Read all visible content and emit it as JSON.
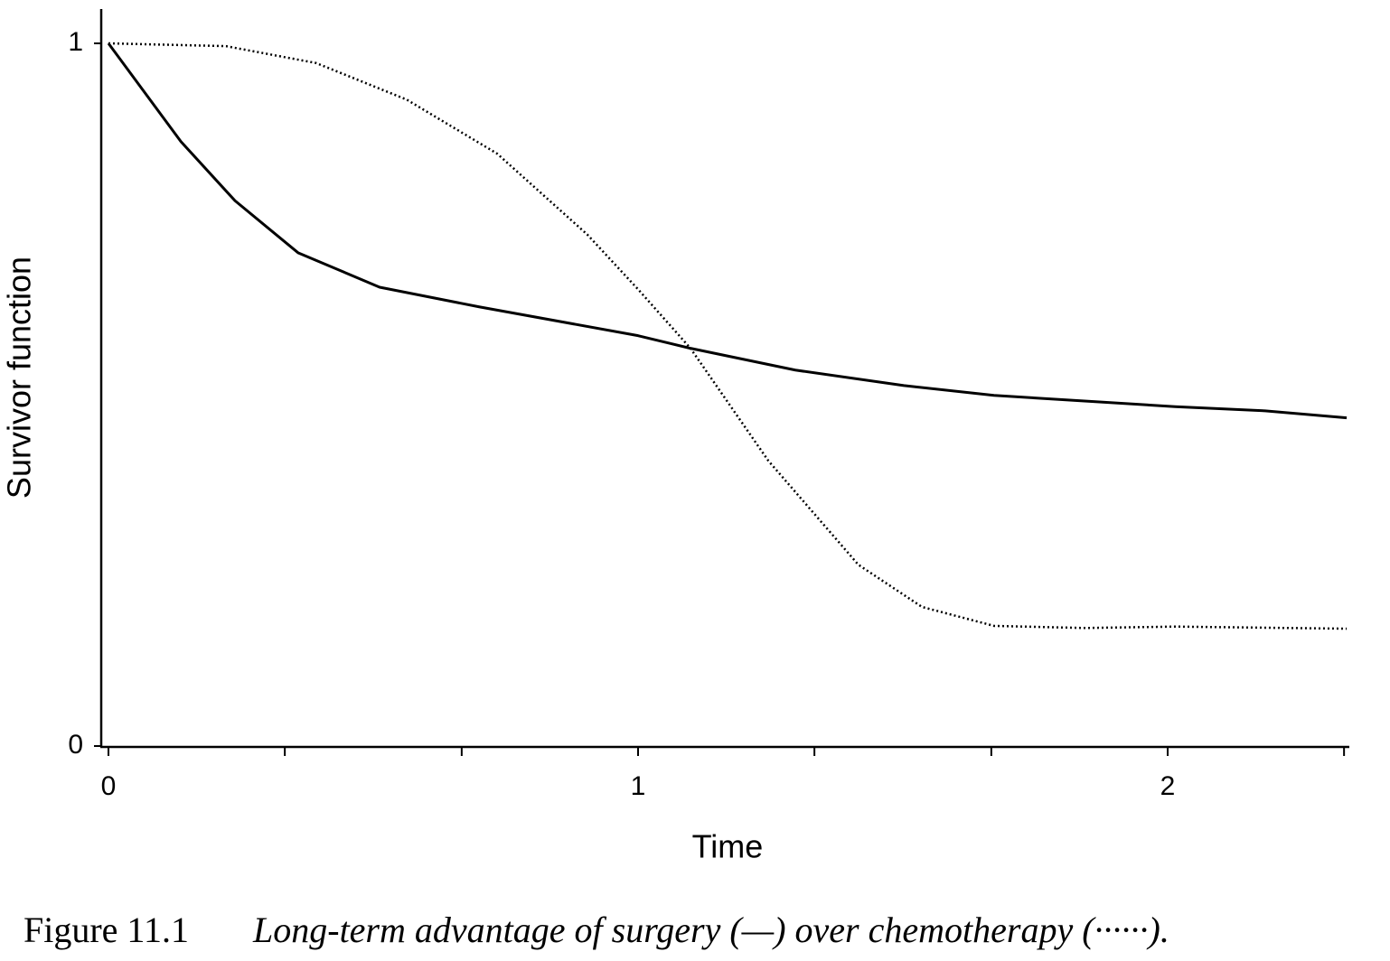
{
  "chart_data": {
    "type": "line",
    "xlabel": "Time",
    "ylabel": "Survivor function",
    "caption_label": "Figure 11.1",
    "caption_text": "Long-term advantage of surgery (—) over chemotherapy (······).",
    "xlim": [
      0,
      2.338
    ],
    "ylim": [
      0,
      1.049
    ],
    "xticks": [
      0,
      1,
      2
    ],
    "xminor_ticks": [
      0.333,
      0.667,
      1.333,
      1.667,
      2.333
    ],
    "yticks": [
      0,
      1
    ],
    "grid": false,
    "series": [
      {
        "color": "#000000",
        "style": "solid",
        "x": [
          0,
          0.137,
          0.239,
          0.358,
          0.512,
          0.7,
          1.0,
          1.099,
          1.297,
          1.502,
          1.672,
          1.843,
          2.014,
          2.184,
          2.338
        ],
        "values": [
          1.0,
          0.86,
          0.776,
          0.702,
          0.653,
          0.625,
          0.584,
          0.566,
          0.535,
          0.513,
          0.499,
          0.491,
          0.483,
          0.477,
          0.467
        ]
      },
      {
        "color": "#000000",
        "style": "dotted",
        "x": [
          0,
          0.222,
          0.392,
          0.563,
          0.734,
          0.904,
          1.0,
          1.099,
          1.246,
          1.416,
          1.536,
          1.672,
          1.843,
          2.014,
          2.338
        ],
        "values": [
          1.0,
          0.996,
          0.972,
          0.92,
          0.843,
          0.728,
          0.65,
          0.566,
          0.406,
          0.258,
          0.198,
          0.171,
          0.168,
          0.17,
          0.167
        ]
      }
    ]
  }
}
